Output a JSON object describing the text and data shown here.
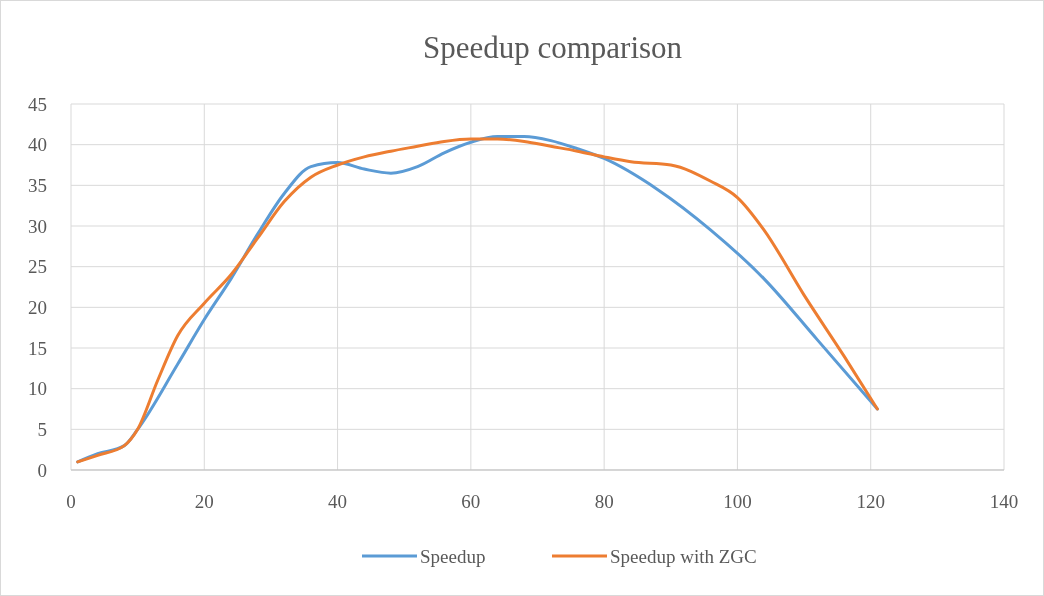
{
  "chart_data": {
    "type": "line",
    "title": "Speedup comparison",
    "xlim": [
      0,
      140
    ],
    "xticks": [
      0,
      20,
      40,
      60,
      80,
      100,
      120,
      140
    ],
    "ylim": [
      0,
      45
    ],
    "yticks": [
      0,
      5,
      10,
      15,
      20,
      25,
      30,
      35,
      40,
      45
    ],
    "grid": true,
    "legend": "bottom",
    "marker": "none",
    "line_style": "solid",
    "series": [
      {
        "name": "Speedup",
        "color": "#5b9bd5",
        "x": [
          1,
          4,
          8,
          10,
          16,
          20,
          24,
          28,
          32,
          36,
          40,
          44,
          48,
          52,
          56,
          60,
          64,
          68,
          72,
          76,
          80,
          88,
          96,
          104,
          112,
          121
        ],
        "values": [
          1,
          2,
          3,
          5,
          13,
          18.5,
          23.5,
          29,
          34,
          37.3,
          37.8,
          37,
          36.5,
          37.3,
          39,
          40.3,
          41,
          41,
          40.5,
          39.5,
          38.3,
          34.5,
          29.5,
          23.5,
          16,
          7.5
        ]
      },
      {
        "name": "Speedup with ZGC",
        "color": "#ed7d31",
        "x": [
          1,
          4,
          8,
          10,
          13,
          16,
          20,
          24,
          28,
          32,
          36,
          40,
          44,
          48,
          52,
          56,
          60,
          64,
          68,
          72,
          76,
          80,
          84,
          90,
          96,
          100,
          104,
          110,
          116,
          121
        ],
        "values": [
          1,
          1.8,
          3,
          5,
          11,
          16.5,
          20.5,
          24,
          28.5,
          33,
          36,
          37.5,
          38.5,
          39.2,
          39.8,
          40.4,
          40.7,
          40.7,
          40.4,
          39.8,
          39.2,
          38.5,
          37.9,
          37.5,
          35.5,
          33.5,
          29.5,
          21.5,
          14,
          7.5
        ]
      }
    ]
  }
}
